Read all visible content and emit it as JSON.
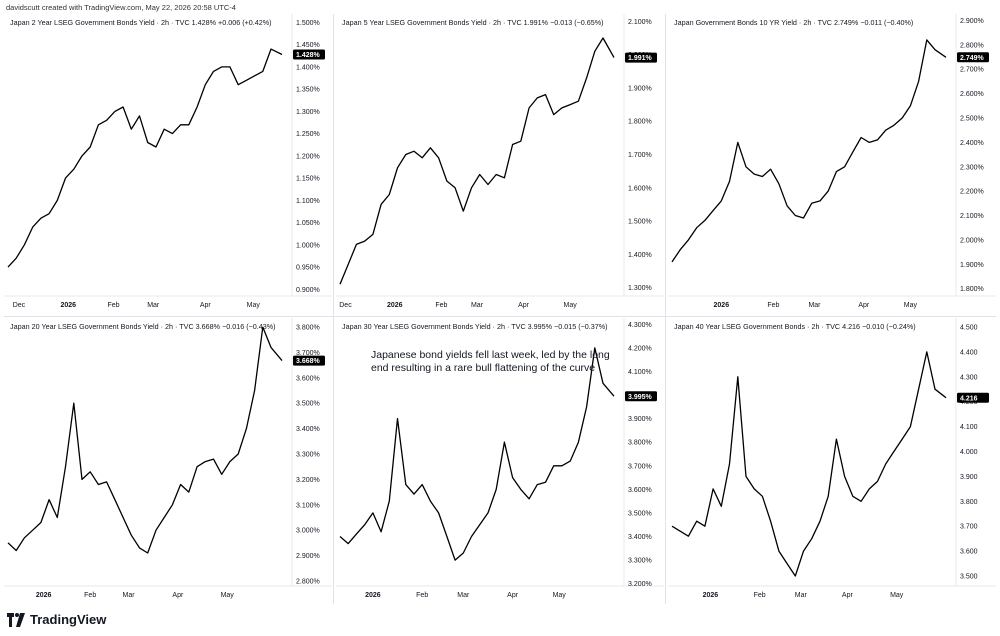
{
  "header": {
    "credit": "davidscutt created with TradingView.com, May 22, 2026 20:58 UTC-4"
  },
  "footer": {
    "brand": "TradingView"
  },
  "annotation": {
    "line1": "Japanese bond yields fell last week, led by the long",
    "line2": "end resulting in a rare bull flattening of the curve"
  },
  "colors": {
    "line": "#000000",
    "last_tag_bg": "#000000",
    "last_tag_text": "#ffffff",
    "grid": "#e6e8ee"
  },
  "chart_data": [
    {
      "type": "line",
      "title": "Japan 2 Year LSEG Government Bonds Yield · 2h · TVC  1.428%  +0.006 (+0.42%)",
      "ytick_labels": [
        "1.500%",
        "1.450%",
        "1.400%",
        "1.350%",
        "1.300%",
        "1.250%",
        "1.200%",
        "1.150%",
        "1.100%",
        "1.050%",
        "1.000%",
        "0.950%",
        "0.900%"
      ],
      "ylim": [
        0.885,
        1.51
      ],
      "xtick_labels": [
        "Dec",
        "2026",
        "Feb",
        "Mar",
        "Apr",
        "May"
      ],
      "xtick_pos": [
        0.04,
        0.22,
        0.385,
        0.53,
        0.72,
        0.895
      ],
      "last_value": "1.428%",
      "x": [
        0,
        0.03,
        0.06,
        0.09,
        0.12,
        0.15,
        0.18,
        0.21,
        0.24,
        0.27,
        0.3,
        0.33,
        0.36,
        0.39,
        0.42,
        0.45,
        0.48,
        0.51,
        0.54,
        0.57,
        0.6,
        0.63,
        0.66,
        0.69,
        0.72,
        0.75,
        0.78,
        0.81,
        0.84,
        0.87,
        0.9,
        0.93,
        0.96,
        1.0
      ],
      "y": [
        0.95,
        0.97,
        1.0,
        1.04,
        1.06,
        1.07,
        1.1,
        1.15,
        1.17,
        1.2,
        1.22,
        1.27,
        1.28,
        1.3,
        1.31,
        1.26,
        1.29,
        1.23,
        1.22,
        1.26,
        1.25,
        1.27,
        1.27,
        1.31,
        1.36,
        1.39,
        1.4,
        1.4,
        1.36,
        1.37,
        1.38,
        1.39,
        1.44,
        1.428
      ]
    },
    {
      "type": "line",
      "title": "Japan 5 Year LSEG Government Bonds Yield · 2h · TVC  1.991%  −0.013 (−0.65%)",
      "ytick_labels": [
        "2.100%",
        "2.000%",
        "1.900%",
        "1.800%",
        "1.700%",
        "1.600%",
        "1.500%",
        "1.400%",
        "1.300%"
      ],
      "ylim": [
        1.275,
        2.11
      ],
      "xtick_labels": [
        "Dec",
        "2026",
        "Feb",
        "Mar",
        "Apr",
        "May"
      ],
      "xtick_pos": [
        0.02,
        0.2,
        0.37,
        0.5,
        0.67,
        0.84
      ],
      "last_value": "1.991%",
      "x": [
        0,
        0.03,
        0.06,
        0.09,
        0.12,
        0.15,
        0.18,
        0.21,
        0.24,
        0.27,
        0.3,
        0.33,
        0.36,
        0.39,
        0.42,
        0.45,
        0.48,
        0.51,
        0.54,
        0.57,
        0.6,
        0.63,
        0.66,
        0.69,
        0.72,
        0.75,
        0.78,
        0.81,
        0.84,
        0.87,
        0.9,
        0.93,
        0.96,
        1.0
      ],
      "y": [
        1.31,
        1.37,
        1.43,
        1.44,
        1.46,
        1.55,
        1.58,
        1.66,
        1.7,
        1.71,
        1.69,
        1.72,
        1.69,
        1.62,
        1.6,
        1.53,
        1.6,
        1.64,
        1.61,
        1.64,
        1.63,
        1.73,
        1.74,
        1.84,
        1.87,
        1.88,
        1.82,
        1.84,
        1.85,
        1.86,
        1.93,
        2.01,
        2.05,
        1.991
      ]
    },
    {
      "type": "line",
      "title": "Japan Government Bonds 10 YR Yield · 2h · TVC  2.749%  −0.011 (−0.40%)",
      "ytick_labels": [
        "2.900%",
        "2.800%",
        "2.700%",
        "2.600%",
        "2.500%",
        "2.400%",
        "2.300%",
        "2.200%",
        "2.100%",
        "2.000%",
        "1.900%",
        "1.800%"
      ],
      "ylim": [
        1.77,
        2.91
      ],
      "xtick_labels": [
        "2026",
        "Feb",
        "Mar",
        "Apr",
        "May"
      ],
      "xtick_pos": [
        0.18,
        0.37,
        0.52,
        0.7,
        0.87
      ],
      "last_value": "2.749%",
      "x": [
        0,
        0.03,
        0.06,
        0.09,
        0.12,
        0.15,
        0.18,
        0.21,
        0.24,
        0.27,
        0.3,
        0.33,
        0.36,
        0.39,
        0.42,
        0.45,
        0.48,
        0.51,
        0.54,
        0.57,
        0.6,
        0.63,
        0.66,
        0.69,
        0.72,
        0.75,
        0.78,
        0.81,
        0.84,
        0.87,
        0.9,
        0.93,
        0.96,
        1.0
      ],
      "y": [
        1.91,
        1.96,
        2.0,
        2.05,
        2.08,
        2.12,
        2.16,
        2.24,
        2.4,
        2.3,
        2.27,
        2.26,
        2.29,
        2.23,
        2.14,
        2.1,
        2.09,
        2.15,
        2.16,
        2.2,
        2.28,
        2.3,
        2.36,
        2.42,
        2.4,
        2.41,
        2.45,
        2.47,
        2.5,
        2.55,
        2.65,
        2.82,
        2.78,
        2.749
      ]
    },
    {
      "type": "line",
      "title": "Japan 20 Year LSEG Government Bonds Yield · 2h · TVC  3.668%  −0.016 (−0.43%)",
      "ytick_labels": [
        "3.800%",
        "3.700%",
        "3.600%",
        "3.500%",
        "3.400%",
        "3.300%",
        "3.200%",
        "3.100%",
        "3.000%",
        "2.900%",
        "2.800%"
      ],
      "ylim": [
        2.78,
        3.82
      ],
      "xtick_labels": [
        "2026",
        "Feb",
        "Mar",
        "Apr",
        "May"
      ],
      "xtick_pos": [
        0.13,
        0.3,
        0.44,
        0.62,
        0.8
      ],
      "last_value": "3.668%",
      "x": [
        0,
        0.03,
        0.06,
        0.09,
        0.12,
        0.15,
        0.18,
        0.21,
        0.24,
        0.27,
        0.3,
        0.33,
        0.36,
        0.39,
        0.42,
        0.45,
        0.48,
        0.51,
        0.54,
        0.57,
        0.6,
        0.63,
        0.66,
        0.69,
        0.72,
        0.75,
        0.78,
        0.81,
        0.84,
        0.87,
        0.9,
        0.93,
        0.96,
        1.0
      ],
      "y": [
        2.95,
        2.92,
        2.97,
        3.0,
        3.03,
        3.12,
        3.05,
        3.25,
        3.5,
        3.2,
        3.23,
        3.18,
        3.19,
        3.12,
        3.05,
        2.98,
        2.93,
        2.91,
        3.0,
        3.05,
        3.1,
        3.18,
        3.15,
        3.25,
        3.27,
        3.28,
        3.22,
        3.27,
        3.3,
        3.4,
        3.55,
        3.8,
        3.72,
        3.668
      ]
    },
    {
      "type": "line",
      "title": "Japan 30 Year LSEG Government Bonds Yield · 2h · TVC  3.995%  −0.015 (−0.37%)",
      "ytick_labels": [
        "4.300%",
        "4.200%",
        "4.100%",
        "4.000%",
        "3.900%",
        "3.800%",
        "3.700%",
        "3.600%",
        "3.500%",
        "3.400%",
        "3.300%",
        "3.200%"
      ],
      "ylim": [
        3.19,
        4.31
      ],
      "xtick_labels": [
        "2026",
        "Feb",
        "Mar",
        "Apr",
        "May"
      ],
      "xtick_pos": [
        0.12,
        0.3,
        0.45,
        0.63,
        0.8
      ],
      "last_value": "3.995%",
      "x": [
        0,
        0.03,
        0.06,
        0.09,
        0.12,
        0.15,
        0.18,
        0.21,
        0.24,
        0.27,
        0.3,
        0.33,
        0.36,
        0.39,
        0.42,
        0.45,
        0.48,
        0.51,
        0.54,
        0.57,
        0.6,
        0.63,
        0.66,
        0.69,
        0.72,
        0.75,
        0.78,
        0.81,
        0.84,
        0.87,
        0.9,
        0.93,
        0.96,
        1.0
      ],
      "y": [
        3.4,
        3.37,
        3.41,
        3.45,
        3.5,
        3.42,
        3.55,
        3.9,
        3.62,
        3.58,
        3.62,
        3.55,
        3.5,
        3.4,
        3.3,
        3.33,
        3.4,
        3.45,
        3.5,
        3.6,
        3.8,
        3.65,
        3.6,
        3.56,
        3.62,
        3.63,
        3.7,
        3.7,
        3.72,
        3.8,
        3.95,
        4.2,
        4.05,
        3.995
      ]
    },
    {
      "type": "line",
      "title": "Japan 40 Year LSEG Government Bonds · 2h · TVC  4.216  −0.010 (−0.24%)",
      "ytick_labels": [
        "4.500",
        "4.400",
        "4.300",
        "4.200",
        "4.100",
        "4.000",
        "3.900",
        "3.800",
        "3.700",
        "3.600",
        "3.500"
      ],
      "ylim": [
        3.46,
        4.52
      ],
      "xtick_labels": [
        "2026",
        "Feb",
        "Mar",
        "Apr",
        "May"
      ],
      "xtick_pos": [
        0.14,
        0.32,
        0.47,
        0.64,
        0.82
      ],
      "last_value": "4.216",
      "x": [
        0,
        0.03,
        0.06,
        0.09,
        0.12,
        0.15,
        0.18,
        0.21,
        0.24,
        0.27,
        0.3,
        0.33,
        0.36,
        0.39,
        0.42,
        0.45,
        0.48,
        0.51,
        0.54,
        0.57,
        0.6,
        0.63,
        0.66,
        0.69,
        0.72,
        0.75,
        0.78,
        0.81,
        0.84,
        0.87,
        0.9,
        0.93,
        0.96,
        1.0
      ],
      "y": [
        3.7,
        3.68,
        3.66,
        3.72,
        3.7,
        3.85,
        3.78,
        3.95,
        4.3,
        3.9,
        3.85,
        3.82,
        3.72,
        3.6,
        3.55,
        3.5,
        3.6,
        3.65,
        3.72,
        3.82,
        4.05,
        3.9,
        3.82,
        3.8,
        3.85,
        3.88,
        3.95,
        4.0,
        4.05,
        4.1,
        4.25,
        4.4,
        4.25,
        4.216
      ]
    }
  ]
}
